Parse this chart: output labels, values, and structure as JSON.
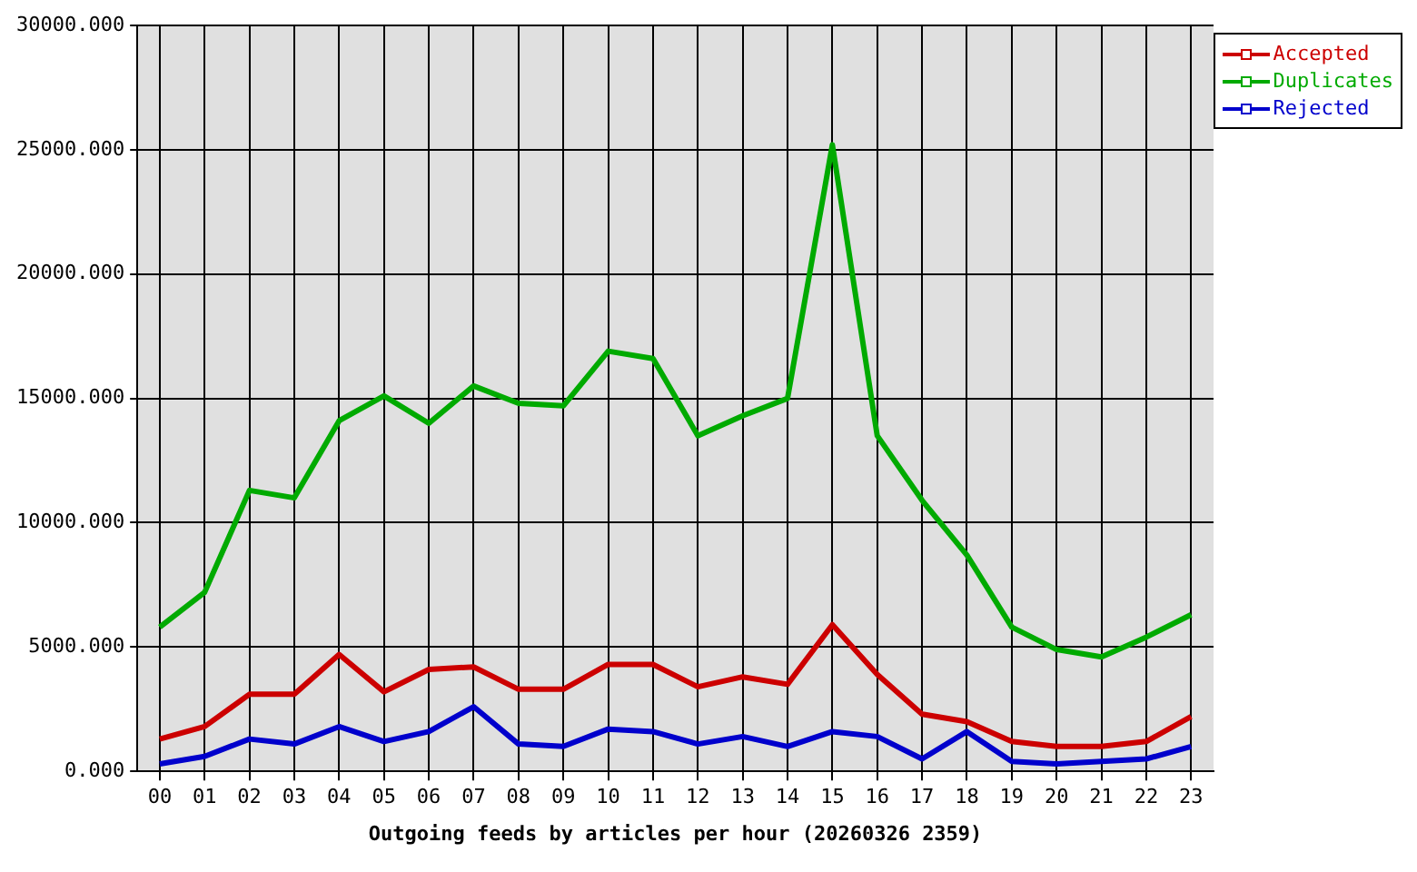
{
  "chart_data": {
    "type": "line",
    "xlabel": "Outgoing feeds by articles per hour (20260326 2359)",
    "categories": [
      "00",
      "01",
      "02",
      "03",
      "04",
      "05",
      "06",
      "07",
      "08",
      "09",
      "10",
      "11",
      "12",
      "13",
      "14",
      "15",
      "16",
      "17",
      "18",
      "19",
      "20",
      "21",
      "22",
      "23"
    ],
    "series": [
      {
        "name": "Accepted",
        "color": "#cc0000",
        "values": [
          1300,
          1800,
          3100,
          3100,
          4700,
          3200,
          4100,
          4200,
          3300,
          3300,
          4300,
          4300,
          3400,
          3800,
          3500,
          5900,
          3900,
          2300,
          2000,
          1200,
          1000,
          1000,
          1200,
          2200
        ]
      },
      {
        "name": "Duplicates",
        "color": "#00aa00",
        "values": [
          5800,
          7200,
          11300,
          11000,
          14100,
          15100,
          14000,
          15500,
          14800,
          14700,
          16900,
          16600,
          13500,
          14300,
          15000,
          25200,
          13500,
          10900,
          8700,
          5800,
          4900,
          4600,
          5400,
          6300
        ]
      },
      {
        "name": "Rejected",
        "color": "#0000cc",
        "values": [
          300,
          600,
          1300,
          1100,
          1800,
          1200,
          1600,
          2600,
          1100,
          1000,
          1700,
          1600,
          1100,
          1400,
          1000,
          1600,
          1400,
          500,
          1600,
          400,
          300,
          400,
          500,
          1000
        ]
      }
    ],
    "ylim": [
      0,
      30000
    ],
    "yticks": [
      {
        "value": 0,
        "label": "0.000"
      },
      {
        "value": 5000,
        "label": "5000.000"
      },
      {
        "value": 10000,
        "label": "10000.000"
      },
      {
        "value": 15000,
        "label": "15000.000"
      },
      {
        "value": 20000,
        "label": "20000.000"
      },
      {
        "value": 25000,
        "label": "25000.000"
      },
      {
        "value": 30000,
        "label": "30000.000"
      }
    ],
    "grid": true,
    "legend": "top right",
    "marker": "none",
    "line_style": "solid"
  }
}
